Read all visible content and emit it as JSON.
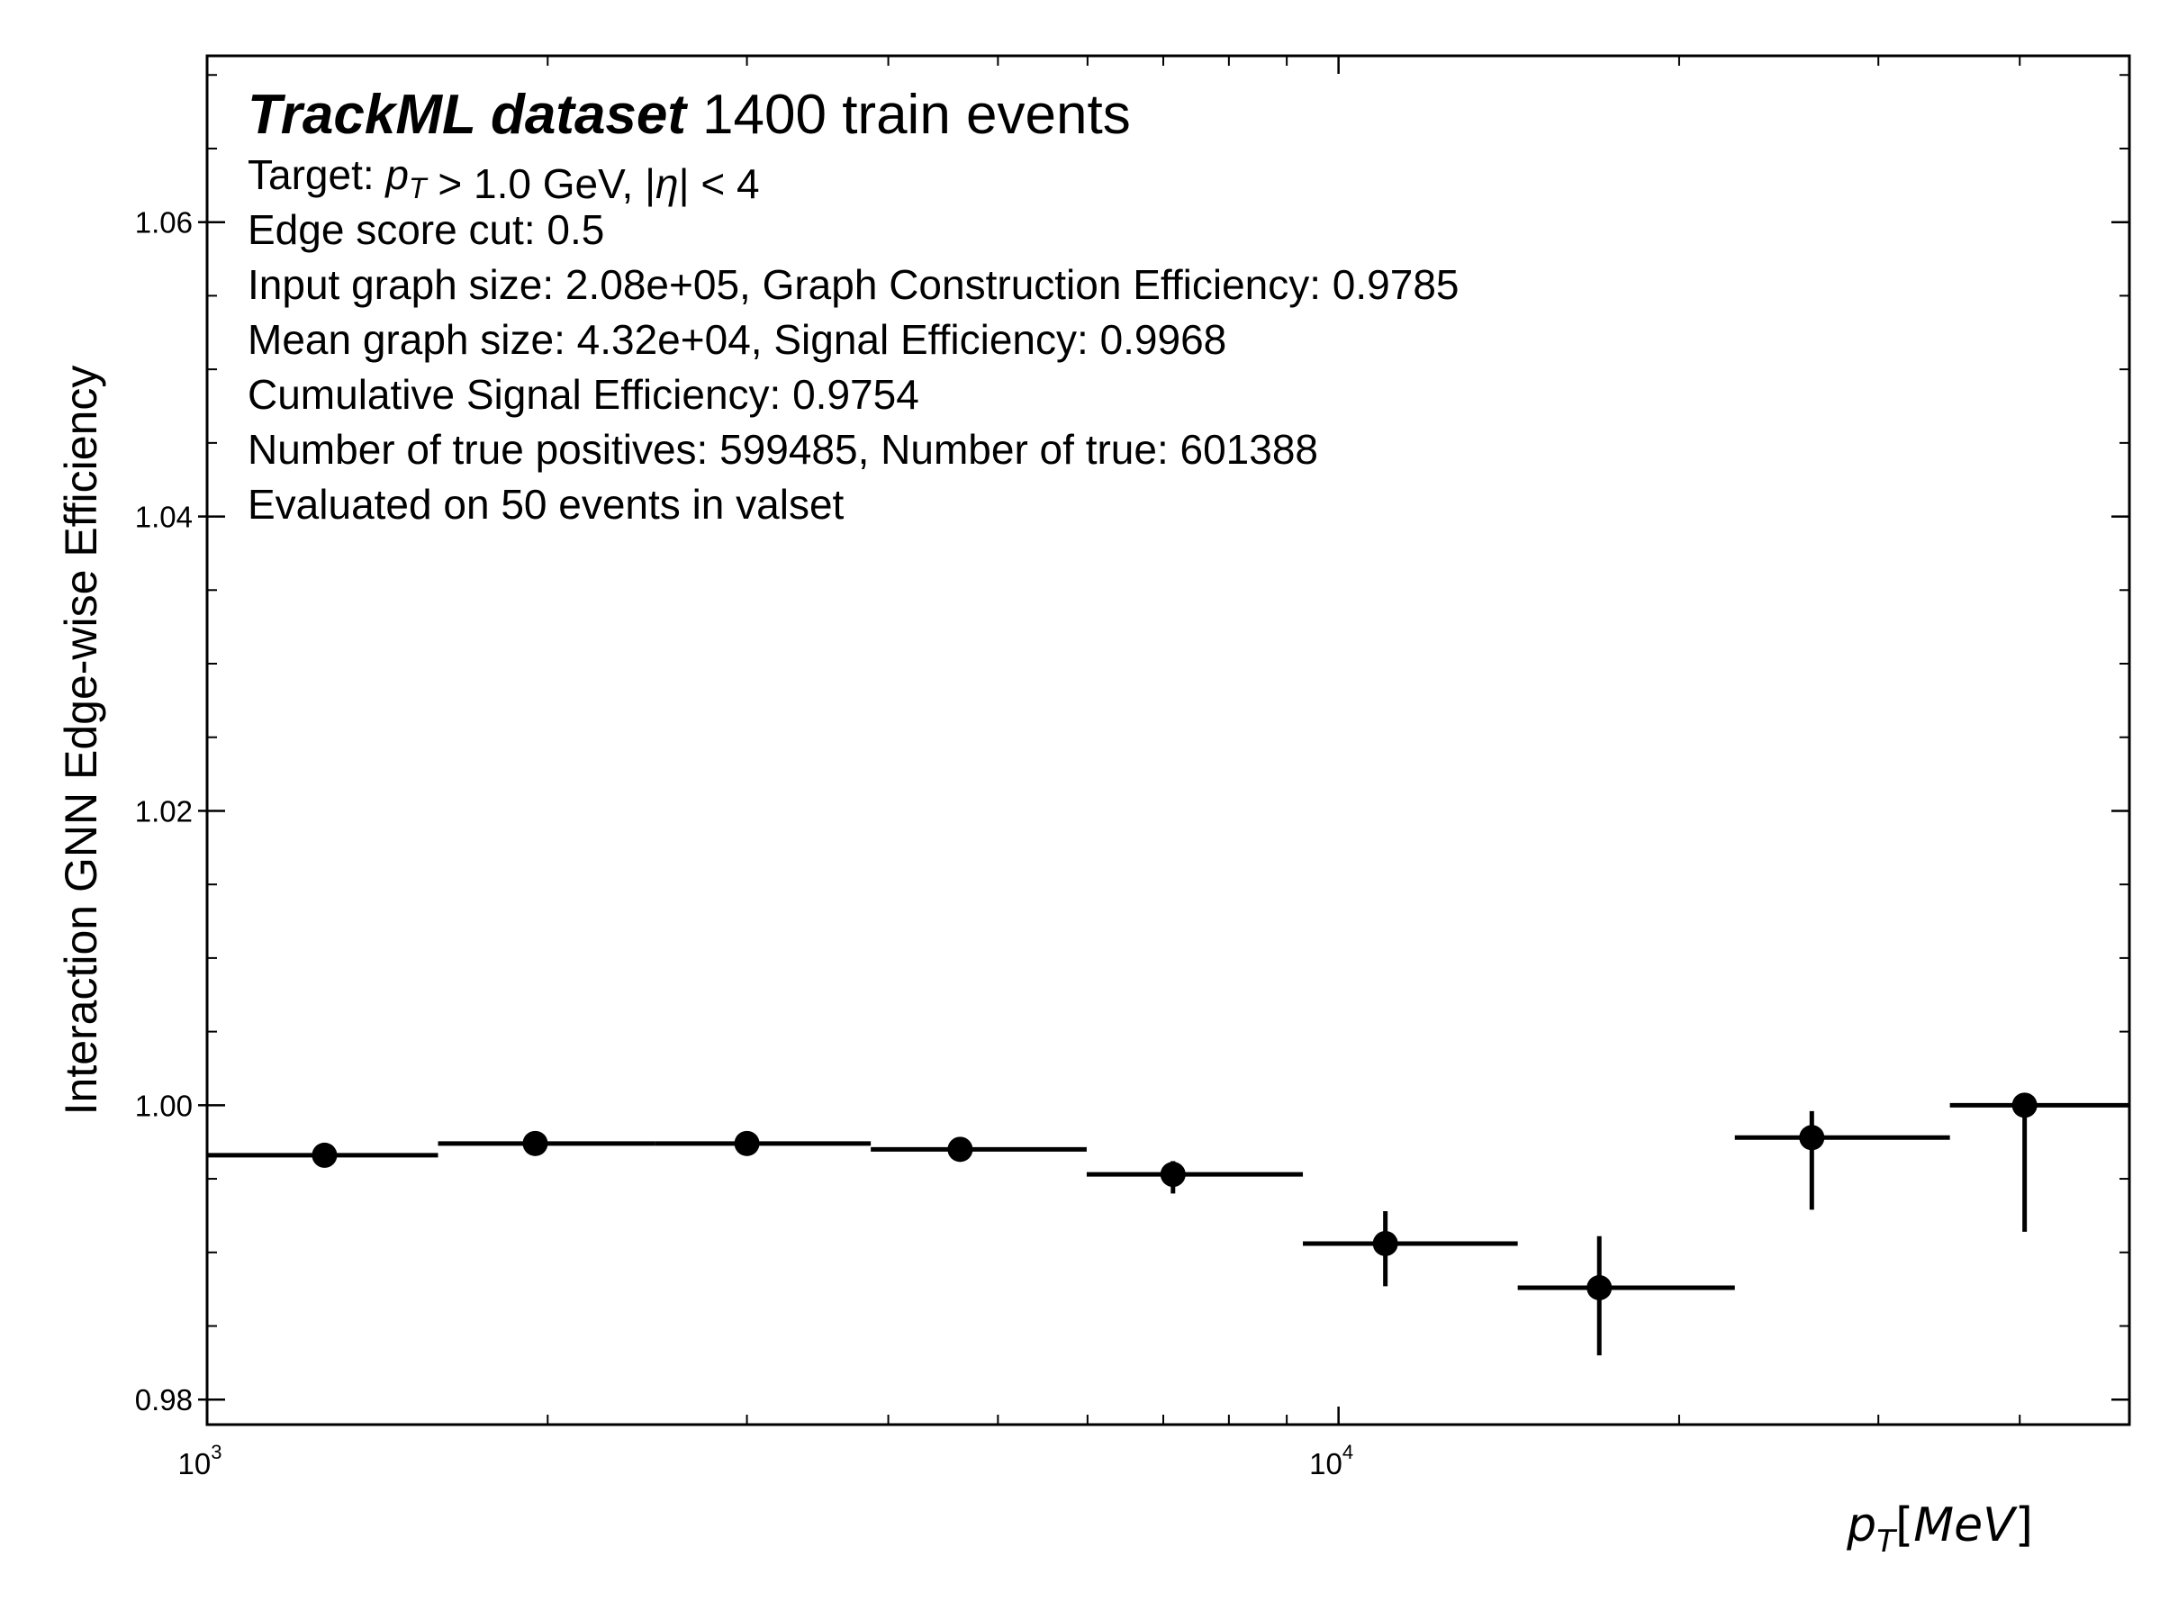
{
  "chart_data": {
    "type": "scatter",
    "title_bold": "TrackML dataset",
    "title_rest": "1400 train events",
    "info_lines": [
      "Target: p_T > 1.0 GeV, |η| < 4",
      "Edge score cut: 0.5",
      "Input graph size: 2.08e+05, Graph Construction Efficiency: 0.9785",
      "Mean graph size: 4.32e+04, Signal Efficiency: 0.9968",
      "Cumulative Signal Efficiency: 0.9754",
      "Number of true positives: 599485, Number of true: 601388",
      "Evaluated on 50 events in valset"
    ],
    "xlabel": "p_T [MeV]",
    "ylabel": "Interaction GNN Edge-wise Efficiency",
    "xscale": "log",
    "xlim": [
      1000,
      50000
    ],
    "ylim": [
      0.9783,
      1.0713
    ],
    "yticks": [
      0.98,
      1.0,
      1.02,
      1.04,
      1.06
    ],
    "ytick_labels": [
      "0.98",
      "1.00",
      "1.02",
      "1.04",
      "1.06"
    ],
    "xticks": [
      1000,
      10000
    ],
    "xtick_labels": [
      {
        "base": "10",
        "exp": "3"
      },
      {
        "base": "10",
        "exp": "4"
      }
    ],
    "grid": false,
    "points": [
      {
        "x": 1270,
        "y": 0.9966,
        "xlo": 1000,
        "xhi": 1600,
        "ylo": 0.9966,
        "yhi": 0.9966
      },
      {
        "x": 1950,
        "y": 0.9974,
        "xlo": 1600,
        "xhi": 2490,
        "ylo": 0.9974,
        "yhi": 0.9974
      },
      {
        "x": 3000,
        "y": 0.9974,
        "xlo": 2490,
        "xhi": 3860,
        "ylo": 0.9974,
        "yhi": 0.9974
      },
      {
        "x": 4630,
        "y": 0.997,
        "xlo": 3860,
        "xhi": 5990,
        "ylo": 0.997,
        "yhi": 0.997
      },
      {
        "x": 7140,
        "y": 0.9953,
        "xlo": 5990,
        "xhi": 9300,
        "ylo": 0.994,
        "yhi": 0.9962
      },
      {
        "x": 11000,
        "y": 0.9906,
        "xlo": 9300,
        "xhi": 14400,
        "ylo": 0.9877,
        "yhi": 0.9928
      },
      {
        "x": 17000,
        "y": 0.9876,
        "xlo": 14400,
        "xhi": 22400,
        "ylo": 0.983,
        "yhi": 0.9911
      },
      {
        "x": 26200,
        "y": 0.9978,
        "xlo": 22400,
        "xhi": 34700,
        "ylo": 0.9929,
        "yhi": 0.9996
      },
      {
        "x": 40400,
        "y": 1.0,
        "xlo": 34700,
        "xhi": 50000,
        "ylo": 0.9914,
        "yhi": 1.0
      }
    ]
  }
}
